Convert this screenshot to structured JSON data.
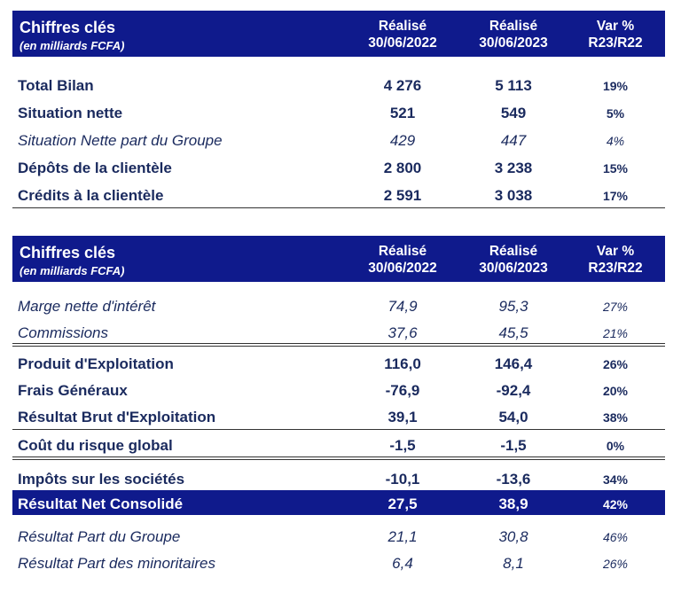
{
  "table1": {
    "header": {
      "title": "Chiffres clés",
      "subtitle": "(en milliards FCFA)",
      "col1": [
        "Réalisé",
        "30/06/2022"
      ],
      "col2": [
        "Réalisé",
        "30/06/2023"
      ],
      "col3": [
        "Var %",
        "R23/R22"
      ]
    },
    "rows": [
      {
        "label": "Total Bilan",
        "v1": "4 276",
        "v2": "5 113",
        "var": "19%"
      },
      {
        "label": "Situation nette",
        "v1": "521",
        "v2": "549",
        "var": "5%"
      },
      {
        "label": "Situation Nette part du Groupe",
        "v1": "429",
        "v2": "447",
        "var": "4%"
      },
      {
        "label": "Dépôts de la clientèle",
        "v1": "2 800",
        "v2": "3 238",
        "var": "15%"
      },
      {
        "label": "Crédits à la clientèle",
        "v1": "2 591",
        "v2": "3 038",
        "var": "17%"
      }
    ]
  },
  "table2": {
    "header": {
      "title": "Chiffres clés",
      "subtitle": "(en milliards FCFA)",
      "col1": [
        "Réalisé",
        "30/06/2022"
      ],
      "col2": [
        "Réalisé",
        "30/06/2023"
      ],
      "col3": [
        "Var %",
        "R23/R22"
      ]
    },
    "rows": [
      {
        "label": "Marge nette d'intérêt",
        "v1": "74,9",
        "v2": "95,3",
        "var": "27%"
      },
      {
        "label": "Commissions",
        "v1": "37,6",
        "v2": "45,5",
        "var": "21%"
      },
      {
        "label": "Produit d'Exploitation",
        "v1": "116,0",
        "v2": "146,4",
        "var": "26%"
      },
      {
        "label": "Frais Généraux",
        "v1": "-76,9",
        "v2": "-92,4",
        "var": "20%"
      },
      {
        "label": "Résultat Brut d'Exploitation",
        "v1": "39,1",
        "v2": "54,0",
        "var": "38%"
      },
      {
        "label": "Coût du risque global",
        "v1": "-1,5",
        "v2": "-1,5",
        "var": "0%"
      },
      {
        "label": "Impôts sur les sociétés",
        "v1": "-10,1",
        "v2": "-13,6",
        "var": "34%"
      },
      {
        "label": "Résultat Net Consolidé",
        "v1": "27,5",
        "v2": "38,9",
        "var": "42%"
      },
      {
        "label": "Résultat Part du Groupe",
        "v1": "21,1",
        "v2": "30,8",
        "var": "46%"
      },
      {
        "label": "Résultat Part des minoritaires",
        "v1": "6,4",
        "v2": "8,1",
        "var": "26%"
      }
    ]
  },
  "colors": {
    "header_bg": "#0f1a8c",
    "header_text": "#ffffff",
    "body_text": "#1a2a5e"
  }
}
